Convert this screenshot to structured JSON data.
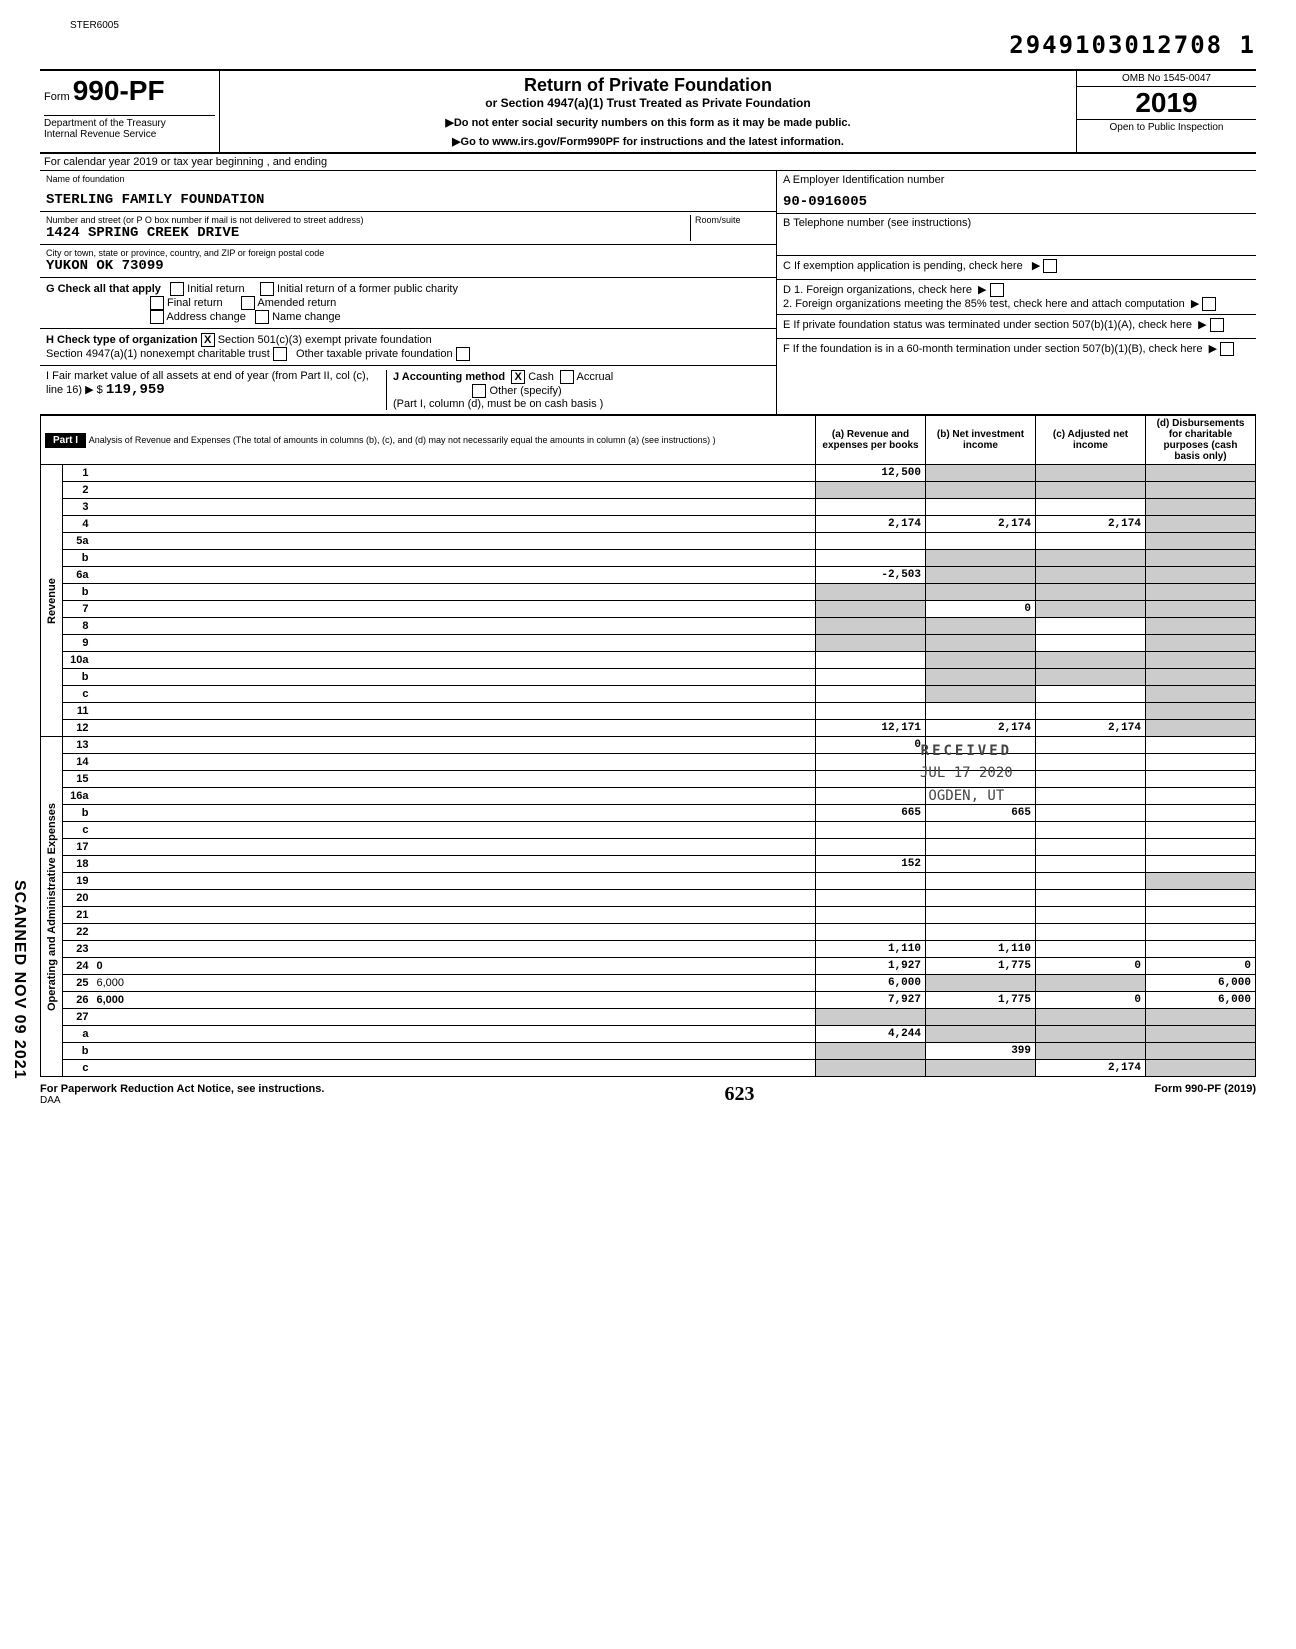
{
  "header": {
    "code": "STER6005",
    "dln": "2949103012708 1",
    "form_number": "990-PF",
    "form_prefix": "Form",
    "dept1": "Department of the Treasury",
    "dept2": "Internal Revenue Service",
    "title": "Return of Private Foundation",
    "subtitle": "or Section 4947(a)(1) Trust Treated as Private Foundation",
    "note1": "▶Do not enter social security numbers on this form as it may be made public.",
    "note2": "▶Go to www.irs.gov/Form990PF for instructions and the latest information.",
    "omb": "OMB No 1545-0047",
    "year": "2019",
    "inspection": "Open to Public Inspection"
  },
  "calendar_row": "For calendar year 2019 or tax year beginning                          , and ending",
  "foundation": {
    "name_label": "Name of foundation",
    "name": "STERLING FAMILY FOUNDATION",
    "address_label": "Number and street (or P O box number if mail is not delivered to street address)",
    "room_label": "Room/suite",
    "address": "1424 SPRING CREEK DRIVE",
    "city_label": "City or town, state or province, country, and ZIP or foreign postal code",
    "city": "YUKON                         OK 73099",
    "ein_label": "A   Employer Identification number",
    "ein": "90-0916005",
    "phone_label": "B   Telephone number (see instructions)",
    "c_label": "C   If exemption application is pending, check here",
    "d1_label": "D   1. Foreign organizations, check here",
    "d2_label": "     2. Foreign organizations meeting the 85% test, check here and attach computation",
    "e_label": "E   If private foundation status was terminated under section 507(b)(1)(A), check here",
    "f_label": "F   If the foundation is in a 60-month termination under section 507(b)(1)(B), check here"
  },
  "g": {
    "label": "G  Check all that apply",
    "opts": [
      "Initial return",
      "Final return",
      "Address change",
      "Initial return of a former public charity",
      "Amended return",
      "Name change"
    ]
  },
  "h": {
    "label": "H  Check type of organization",
    "opt1": "Section 501(c)(3) exempt private foundation",
    "opt2": "Section 4947(a)(1) nonexempt charitable trust",
    "opt3": "Other taxable private foundation"
  },
  "i": {
    "label": "I   Fair market value of all assets at end of year (from Part II, col (c), line 16) ▶ $",
    "value": "119,959",
    "j_label": "J  Accounting method",
    "cash": "Cash",
    "accrual": "Accrual",
    "other": "Other (specify)",
    "note": "(Part I, column (d), must be on cash basis )"
  },
  "part1": {
    "label": "Part I",
    "desc": "Analysis of Revenue and Expenses (The total of amounts in columns (b), (c), and (d) may not necessarily equal the amounts in column (a) (see instructions) )",
    "col_a": "(a) Revenue and expenses per books",
    "col_b": "(b) Net investment income",
    "col_c": "(c) Adjusted net income",
    "col_d": "(d) Disbursements for charitable purposes (cash basis only)"
  },
  "sections": {
    "revenue": "Revenue",
    "opex": "Operating and Administrative Expenses"
  },
  "lines": [
    {
      "n": "1",
      "d": "",
      "a": "12,500",
      "b": "",
      "c": "",
      "shade_b": true,
      "shade_c": true,
      "shade_d": true
    },
    {
      "n": "2",
      "d": "",
      "a": "",
      "b": "",
      "c": "",
      "shade_a": true,
      "shade_b": true,
      "shade_c": true,
      "shade_d": true
    },
    {
      "n": "3",
      "d": "",
      "a": "",
      "b": "",
      "c": "",
      "shade_d": true
    },
    {
      "n": "4",
      "d": "",
      "a": "2,174",
      "b": "2,174",
      "c": "2,174",
      "shade_d": true
    },
    {
      "n": "5a",
      "d": "",
      "a": "",
      "b": "",
      "c": "",
      "shade_d": true
    },
    {
      "n": "b",
      "d": "",
      "a": "",
      "b": "",
      "c": "",
      "shade_b": true,
      "shade_c": true,
      "shade_d": true
    },
    {
      "n": "6a",
      "d": "",
      "a": "-2,503",
      "b": "",
      "c": "",
      "shade_b": true,
      "shade_c": true,
      "shade_d": true
    },
    {
      "n": "b",
      "d": "",
      "a": "",
      "b": "",
      "c": "",
      "shade_a": true,
      "shade_b": true,
      "shade_c": true,
      "shade_d": true
    },
    {
      "n": "7",
      "d": "",
      "a": "",
      "b": "0",
      "c": "",
      "shade_a": true,
      "shade_c": true,
      "shade_d": true
    },
    {
      "n": "8",
      "d": "",
      "a": "",
      "b": "",
      "c": "",
      "shade_a": true,
      "shade_b": true,
      "shade_d": true
    },
    {
      "n": "9",
      "d": "",
      "a": "",
      "b": "",
      "c": "",
      "shade_a": true,
      "shade_b": true,
      "shade_d": true
    },
    {
      "n": "10a",
      "d": "",
      "a": "",
      "b": "",
      "c": "",
      "shade_b": true,
      "shade_c": true,
      "shade_d": true
    },
    {
      "n": "b",
      "d": "",
      "a": "",
      "b": "",
      "c": "",
      "shade_b": true,
      "shade_c": true,
      "shade_d": true
    },
    {
      "n": "c",
      "d": "",
      "a": "",
      "b": "",
      "c": "",
      "shade_b": true,
      "shade_d": true
    },
    {
      "n": "11",
      "d": "",
      "a": "",
      "b": "",
      "c": "",
      "shade_d": true
    },
    {
      "n": "12",
      "d": "",
      "a": "12,171",
      "b": "2,174",
      "c": "2,174",
      "shade_d": true
    },
    {
      "n": "13",
      "d": "",
      "a": "0",
      "b": "",
      "c": ""
    },
    {
      "n": "14",
      "d": "",
      "a": "",
      "b": "",
      "c": ""
    },
    {
      "n": "15",
      "d": "",
      "a": "",
      "b": "",
      "c": ""
    },
    {
      "n": "16a",
      "d": "",
      "a": "",
      "b": "",
      "c": ""
    },
    {
      "n": "b",
      "d": "",
      "a": "665",
      "b": "665",
      "c": ""
    },
    {
      "n": "c",
      "d": "",
      "a": "",
      "b": "",
      "c": ""
    },
    {
      "n": "17",
      "d": "",
      "a": "",
      "b": "",
      "c": ""
    },
    {
      "n": "18",
      "d": "",
      "a": "152",
      "b": "",
      "c": ""
    },
    {
      "n": "19",
      "d": "",
      "a": "",
      "b": "",
      "c": "",
      "shade_d": true
    },
    {
      "n": "20",
      "d": "",
      "a": "",
      "b": "",
      "c": ""
    },
    {
      "n": "21",
      "d": "",
      "a": "",
      "b": "",
      "c": ""
    },
    {
      "n": "22",
      "d": "",
      "a": "",
      "b": "",
      "c": ""
    },
    {
      "n": "23",
      "d": "",
      "a": "1,110",
      "b": "1,110",
      "c": ""
    },
    {
      "n": "24",
      "d": "0",
      "a": "1,927",
      "b": "1,775",
      "c": "0"
    },
    {
      "n": "25",
      "d": "6,000",
      "a": "6,000",
      "b": "",
      "c": "",
      "shade_b": true,
      "shade_c": true
    },
    {
      "n": "26",
      "d": "6,000",
      "a": "7,927",
      "b": "1,775",
      "c": "0"
    },
    {
      "n": "27",
      "d": "",
      "a": "",
      "b": "",
      "c": "",
      "shade_a": true,
      "shade_b": true,
      "shade_c": true,
      "shade_d": true
    },
    {
      "n": "a",
      "d": "",
      "a": "4,244",
      "b": "",
      "c": "",
      "shade_b": true,
      "shade_c": true,
      "shade_d": true
    },
    {
      "n": "b",
      "d": "",
      "a": "",
      "b": "399",
      "c": "",
      "shade_a": true,
      "shade_c": true,
      "shade_d": true
    },
    {
      "n": "c",
      "d": "",
      "a": "",
      "b": "",
      "c": "2,174",
      "shade_a": true,
      "shade_b": true,
      "shade_d": true
    }
  ],
  "footer": {
    "left": "For Paperwork Reduction Act Notice, see instructions.",
    "daa": "DAA",
    "right": "Form 990-PF (2019)",
    "handwritten": "623"
  },
  "stamps": {
    "received": "RECEIVED",
    "date": "JUL 17 2020",
    "ogden": "OGDEN, UT",
    "scanned": "SCANNED NOV 09 2021"
  }
}
